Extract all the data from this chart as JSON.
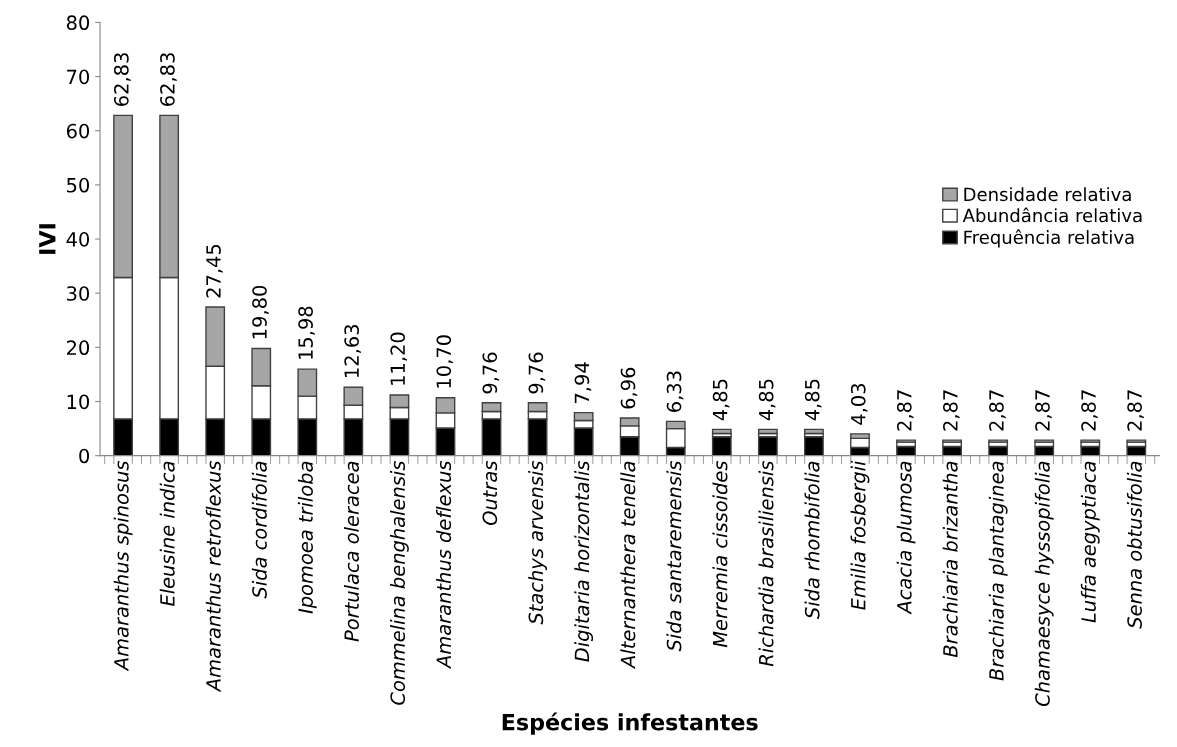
{
  "chart_data": {
    "type": "bar",
    "stacked": true,
    "xlabel": "Espécies infestantes",
    "ylabel": "IVI",
    "categories": [
      "Amaranthus spinosus",
      "Eleusine indica",
      "Amaranthus retroflexus",
      "Sida cordifolia",
      "Ipomoea triloba",
      "Portulaca oleracea",
      "Commelina benghalensis",
      "Amaranthus deflexus",
      "Outras",
      "Stachys arvensis",
      "Digitaria horizontalis",
      "Alternanthera tenella",
      "Sida santaremensis",
      "Merremia cissoides",
      "Richardia brasiliensis",
      "Sida rhombifolia",
      "Emilia fosbergii",
      "Acacia plumosa",
      "Brachiaria brizantha",
      "Brachiaria plantaginea",
      "Chamaesyce hyssopifolia",
      "Luffa aegyptiaca",
      "Senna obtusifolia"
    ],
    "series": [
      {
        "name": "Frequência relativa",
        "color": "#000000",
        "values": [
          6.8,
          6.8,
          6.8,
          6.8,
          6.8,
          6.8,
          6.8,
          5.1,
          6.8,
          6.8,
          5.1,
          3.5,
          1.5,
          3.5,
          3.5,
          3.5,
          1.5,
          1.7,
          1.7,
          1.7,
          1.7,
          1.7,
          1.7
        ]
      },
      {
        "name": "Abundância relativa",
        "color": "#ffffff",
        "values": [
          26.1,
          26.1,
          9.7,
          6.1,
          4.2,
          2.5,
          2.1,
          2.8,
          1.35,
          1.35,
          1.4,
          2.0,
          3.5,
          0.6,
          0.6,
          0.6,
          1.7,
          0.8,
          0.8,
          0.8,
          0.8,
          0.8,
          0.8
        ]
      },
      {
        "name": "Densidade relativa",
        "color": "#a6a6a6",
        "values": [
          29.93,
          29.93,
          10.95,
          6.9,
          4.98,
          3.33,
          2.3,
          2.8,
          1.61,
          1.61,
          1.44,
          1.46,
          1.33,
          0.75,
          0.75,
          0.75,
          0.83,
          0.37,
          0.37,
          0.37,
          0.37,
          0.37,
          0.37
        ]
      }
    ],
    "totals": [
      "62,83",
      "62,83",
      "27,45",
      "19,80",
      "15,98",
      "12,63",
      "11,20",
      "10,70",
      "9,76",
      "9,76",
      "7,94",
      "6,96",
      "6,33",
      "4,85",
      "4,85",
      "4,85",
      "4,03",
      "2,87",
      "2,87",
      "2,87",
      "2,87",
      "2,87",
      "2,87"
    ],
    "ylim": [
      0,
      80
    ],
    "yticks": [
      0,
      10,
      20,
      30,
      40,
      50,
      60,
      70,
      80
    ],
    "grid": false,
    "legend": "right"
  }
}
